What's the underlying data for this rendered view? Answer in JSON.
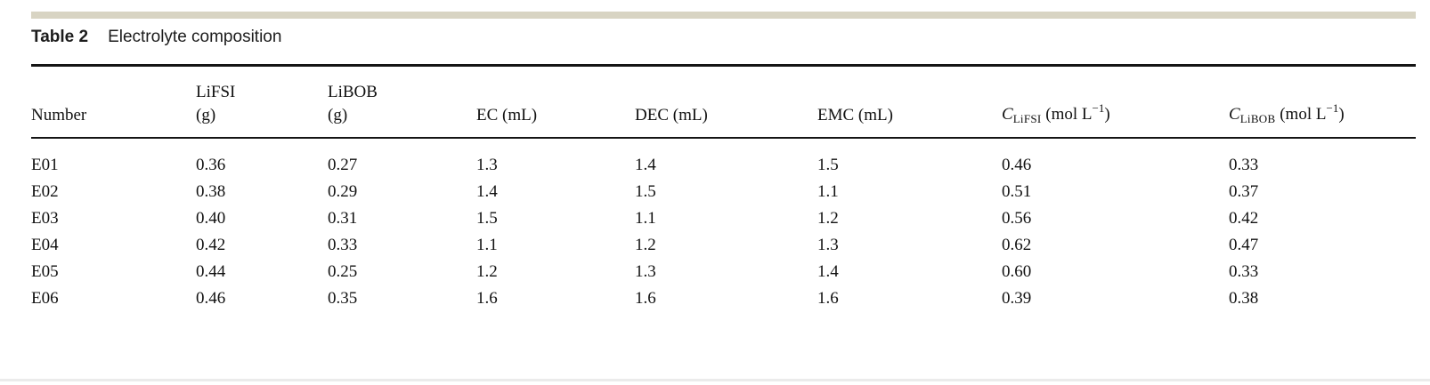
{
  "caption": {
    "label": "Table 2",
    "text": "Electrolyte composition"
  },
  "columns": [
    {
      "line1": "",
      "line2": "Number"
    },
    {
      "line1": "LiFSI",
      "line2": "(g)"
    },
    {
      "line1": "LiBOB",
      "line2": "(g)"
    },
    {
      "line1": "",
      "line2": "EC (mL)"
    },
    {
      "line1": "",
      "line2": "DEC (mL)"
    },
    {
      "line1": "",
      "line2": "EMC (mL)"
    },
    {
      "symbol": "C",
      "sub": "LiFSI",
      "unit_pre": " (mol L",
      "sup": "−1",
      "unit_close": ")"
    },
    {
      "symbol": "C",
      "sub": "LiBOB",
      "unit_pre": " (mol L",
      "sup": "−1",
      "unit_close": ")"
    }
  ],
  "rows": [
    [
      "E01",
      "0.36",
      "0.27",
      "1.3",
      "1.4",
      "1.5",
      "0.46",
      "0.33"
    ],
    [
      "E02",
      "0.38",
      "0.29",
      "1.4",
      "1.5",
      "1.1",
      "0.51",
      "0.37"
    ],
    [
      "E03",
      "0.40",
      "0.31",
      "1.5",
      "1.1",
      "1.2",
      "0.56",
      "0.42"
    ],
    [
      "E04",
      "0.42",
      "0.33",
      "1.1",
      "1.2",
      "1.3",
      "0.62",
      "0.47"
    ],
    [
      "E05",
      "0.44",
      "0.25",
      "1.2",
      "1.3",
      "1.4",
      "0.60",
      "0.33"
    ],
    [
      "E06",
      "0.46",
      "0.35",
      "1.6",
      "1.6",
      "1.6",
      "0.39",
      "0.38"
    ]
  ],
  "colors": {
    "accent_bar": "#d8d4c3",
    "rule": "#141414",
    "text": "#111111",
    "bottom_divider": "#ebebeb"
  }
}
